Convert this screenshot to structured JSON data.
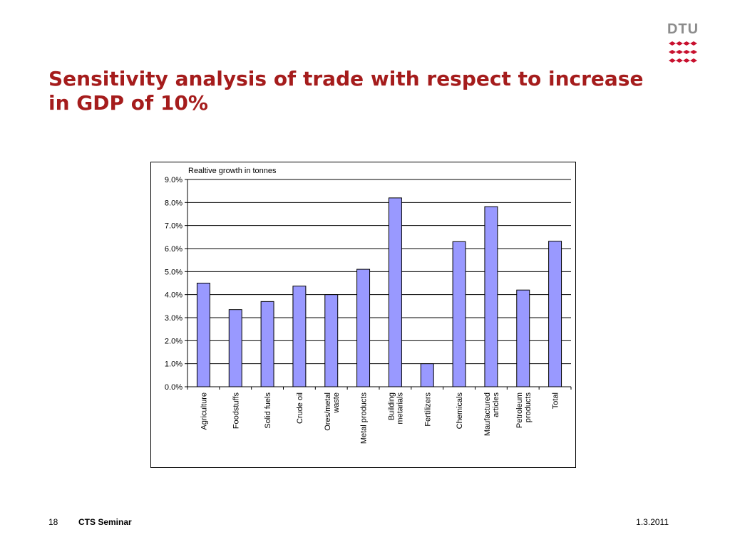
{
  "slide": {
    "title": "Sensitivity analysis of trade with respect to increase in GDP of 10%",
    "logo_text": "DTU",
    "page_number": "18",
    "footer_title": "CTS Seminar",
    "date": "1.3.2011"
  },
  "colors": {
    "title": "#a51c1c",
    "bar_fill": "#9999ff",
    "logo_red": "#c8102e",
    "logo_grey": "#8c8c8c"
  },
  "chart_data": {
    "type": "bar",
    "title": "Realtive growth in tonnes",
    "xlabel": "",
    "ylabel": "",
    "ylim": [
      0,
      9
    ],
    "y_tick_values": [
      0,
      1,
      2,
      3,
      4,
      5,
      6,
      7,
      8,
      9
    ],
    "y_tick_labels": [
      "0.0%",
      "1.0%",
      "2.0%",
      "3.0%",
      "4.0%",
      "5.0%",
      "6.0%",
      "7.0%",
      "8.0%",
      "9.0%"
    ],
    "grid": true,
    "categories": [
      [
        "Agriculture"
      ],
      [
        "Foodstuffs"
      ],
      [
        "Solid fuels"
      ],
      [
        "Crude oil"
      ],
      [
        "Ores/metal",
        "waste"
      ],
      [
        "Metal products"
      ],
      [
        "Building",
        "metarials"
      ],
      [
        "Fertilizers"
      ],
      [
        "Chemicals"
      ],
      [
        "Maufactured",
        "articles"
      ],
      [
        "Petroleum",
        "products"
      ],
      [
        "Total"
      ]
    ],
    "values": [
      4.5,
      3.35,
      3.7,
      4.37,
      4.0,
      5.1,
      8.2,
      1.0,
      6.3,
      7.82,
      4.2,
      6.32
    ]
  }
}
